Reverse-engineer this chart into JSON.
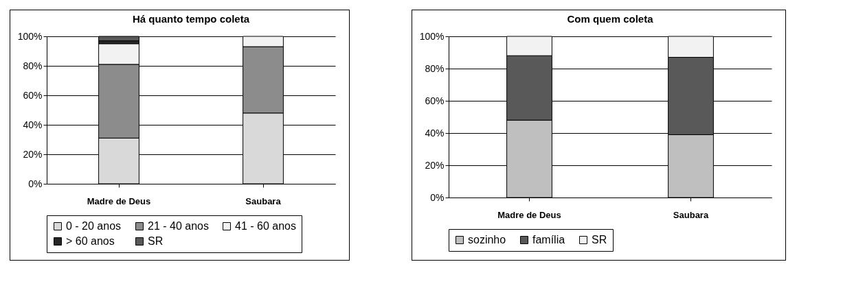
{
  "chart_data": [
    {
      "type": "bar",
      "title": "Há quanto tempo coleta",
      "categories": [
        "Madre de Deus",
        "Saubara"
      ],
      "stacked": true,
      "legend": "bottom",
      "grid": "y",
      "ylim": [
        0,
        100
      ],
      "yticks": [
        {
          "value": 0,
          "label": "0%"
        },
        {
          "value": 20,
          "label": "20%"
        },
        {
          "value": 40,
          "label": "40%"
        },
        {
          "value": 60,
          "label": "60%"
        },
        {
          "value": 80,
          "label": "80%"
        },
        {
          "value": 100,
          "label": "100%"
        }
      ],
      "series": [
        {
          "name": "0 - 20 anos",
          "color": "#d9d9d9",
          "values": [
            31,
            48
          ]
        },
        {
          "name": "21 - 40 anos",
          "color": "#8c8c8c",
          "values": [
            50,
            45
          ]
        },
        {
          "name": "41 - 60 anos",
          "color": "#f2f2f2",
          "values": [
            14,
            7
          ]
        },
        {
          "name": "> 60 anos",
          "color": "#262626",
          "values": [
            2,
            null
          ]
        },
        {
          "name": "SR",
          "color": "#595959",
          "values": [
            3,
            null
          ]
        }
      ]
    },
    {
      "type": "bar",
      "title": "Com quem coleta",
      "categories": [
        "Madre de Deus",
        "Saubara"
      ],
      "stacked": true,
      "legend": "bottom",
      "grid": "y",
      "ylim": [
        0,
        100
      ],
      "yticks": [
        {
          "value": 0,
          "label": "0%"
        },
        {
          "value": 20,
          "label": "20%"
        },
        {
          "value": 40,
          "label": "40%"
        },
        {
          "value": 60,
          "label": "60%"
        },
        {
          "value": 80,
          "label": "80%"
        },
        {
          "value": 100,
          "label": "100%"
        }
      ],
      "series": [
        {
          "name": "sozinho",
          "color": "#bfbfbf",
          "values": [
            48,
            39
          ]
        },
        {
          "name": "família",
          "color": "#595959",
          "values": [
            40,
            48
          ]
        },
        {
          "name": "SR",
          "color": "#f2f2f2",
          "values": [
            12,
            13
          ]
        }
      ]
    }
  ]
}
